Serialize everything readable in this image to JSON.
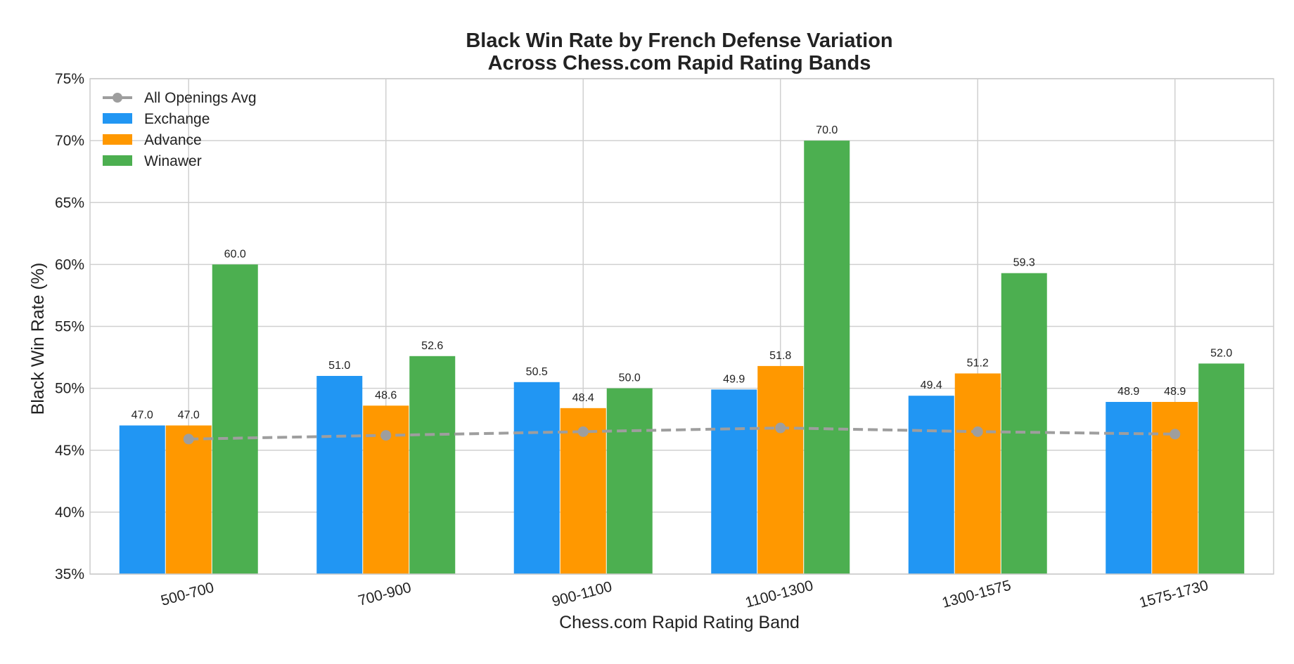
{
  "chart_data": {
    "type": "bar",
    "title": "Black Win Rate by French Defense Variation",
    "subtitle": "Across Chess.com Rapid Rating Bands",
    "xlabel": "Chess.com Rapid Rating Band",
    "ylabel": "Black Win Rate (%)",
    "ylim": [
      35,
      75
    ],
    "yticks": [
      35,
      40,
      45,
      50,
      55,
      60,
      65,
      70,
      75
    ],
    "ytick_suffix": "%",
    "grid": true,
    "legend_position": "top-left",
    "categories": [
      "500-700",
      "700-900",
      "900-1100",
      "1100-1300",
      "1300-1575",
      "1575-1730"
    ],
    "series": [
      {
        "name": "Exchange",
        "color": "#2196F3",
        "values": [
          47.0,
          51.0,
          50.5,
          49.9,
          49.4,
          48.9
        ]
      },
      {
        "name": "Advance",
        "color": "#FF9800",
        "values": [
          47.0,
          48.6,
          48.4,
          51.8,
          51.2,
          48.9
        ]
      },
      {
        "name": "Winawer",
        "color": "#4CAF50",
        "values": [
          60.0,
          52.6,
          50.0,
          70.0,
          59.3,
          52.0
        ]
      }
    ],
    "line_series": {
      "name": "All Openings Avg",
      "color": "#9E9E9E",
      "style": "dashed",
      "values": [
        45.9,
        46.2,
        46.5,
        46.8,
        46.5,
        46.3
      ]
    }
  }
}
